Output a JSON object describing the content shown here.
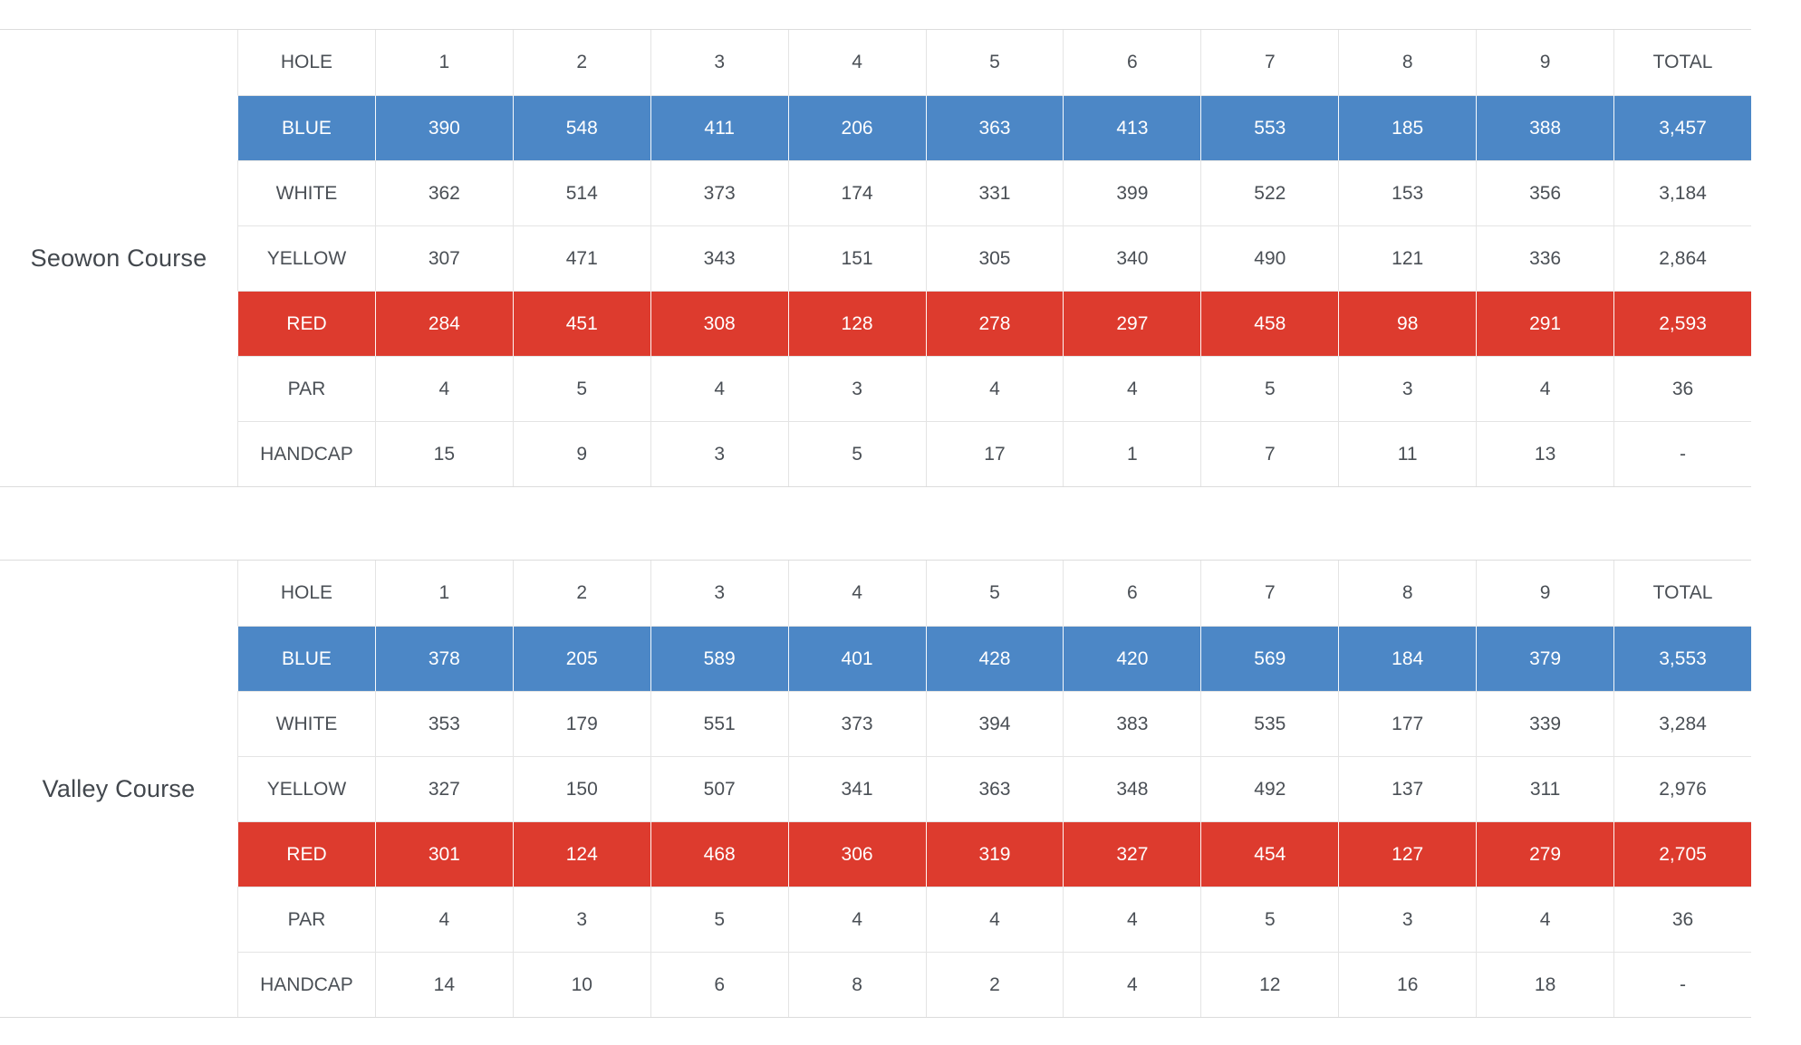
{
  "colors": {
    "blue": "#4c87c6",
    "red": "#dd3b2e",
    "grid": "#e4e4e4",
    "frame": "#dcdcdc",
    "text": "#4a4f55",
    "course_name_text": "#42474d",
    "on_color_text": "#ffffff"
  },
  "columns": {
    "label": "HOLE",
    "holes": [
      "1",
      "2",
      "3",
      "4",
      "5",
      "6",
      "7",
      "8",
      "9"
    ],
    "total": "TOTAL"
  },
  "courses": [
    {
      "name": "Seowon Course",
      "rows": [
        {
          "label": "BLUE",
          "style": "blue",
          "values": [
            "390",
            "548",
            "411",
            "206",
            "363",
            "413",
            "553",
            "185",
            "388"
          ],
          "total": "3,457"
        },
        {
          "label": "WHITE",
          "style": "plain",
          "values": [
            "362",
            "514",
            "373",
            "174",
            "331",
            "399",
            "522",
            "153",
            "356"
          ],
          "total": "3,184"
        },
        {
          "label": "YELLOW",
          "style": "plain",
          "values": [
            "307",
            "471",
            "343",
            "151",
            "305",
            "340",
            "490",
            "121",
            "336"
          ],
          "total": "2,864"
        },
        {
          "label": "RED",
          "style": "red",
          "values": [
            "284",
            "451",
            "308",
            "128",
            "278",
            "297",
            "458",
            "98",
            "291"
          ],
          "total": "2,593"
        },
        {
          "label": "PAR",
          "style": "plain",
          "values": [
            "4",
            "5",
            "4",
            "3",
            "4",
            "4",
            "5",
            "3",
            "4"
          ],
          "total": "36"
        },
        {
          "label": "HANDCAP",
          "style": "plain",
          "values": [
            "15",
            "9",
            "3",
            "5",
            "17",
            "1",
            "7",
            "11",
            "13"
          ],
          "total": "-"
        }
      ]
    },
    {
      "name": "Valley Course",
      "rows": [
        {
          "label": "BLUE",
          "style": "blue",
          "values": [
            "378",
            "205",
            "589",
            "401",
            "428",
            "420",
            "569",
            "184",
            "379"
          ],
          "total": "3,553"
        },
        {
          "label": "WHITE",
          "style": "plain",
          "values": [
            "353",
            "179",
            "551",
            "373",
            "394",
            "383",
            "535",
            "177",
            "339"
          ],
          "total": "3,284"
        },
        {
          "label": "YELLOW",
          "style": "plain",
          "values": [
            "327",
            "150",
            "507",
            "341",
            "363",
            "348",
            "492",
            "137",
            "311"
          ],
          "total": "2,976"
        },
        {
          "label": "RED",
          "style": "red",
          "values": [
            "301",
            "124",
            "468",
            "306",
            "319",
            "327",
            "454",
            "127",
            "279"
          ],
          "total": "2,705"
        },
        {
          "label": "PAR",
          "style": "plain",
          "values": [
            "4",
            "3",
            "5",
            "4",
            "4",
            "4",
            "5",
            "3",
            "4"
          ],
          "total": "36"
        },
        {
          "label": "HANDCAP",
          "style": "plain",
          "values": [
            "14",
            "10",
            "6",
            "8",
            "2",
            "4",
            "12",
            "16",
            "18"
          ],
          "total": "-"
        }
      ]
    }
  ]
}
